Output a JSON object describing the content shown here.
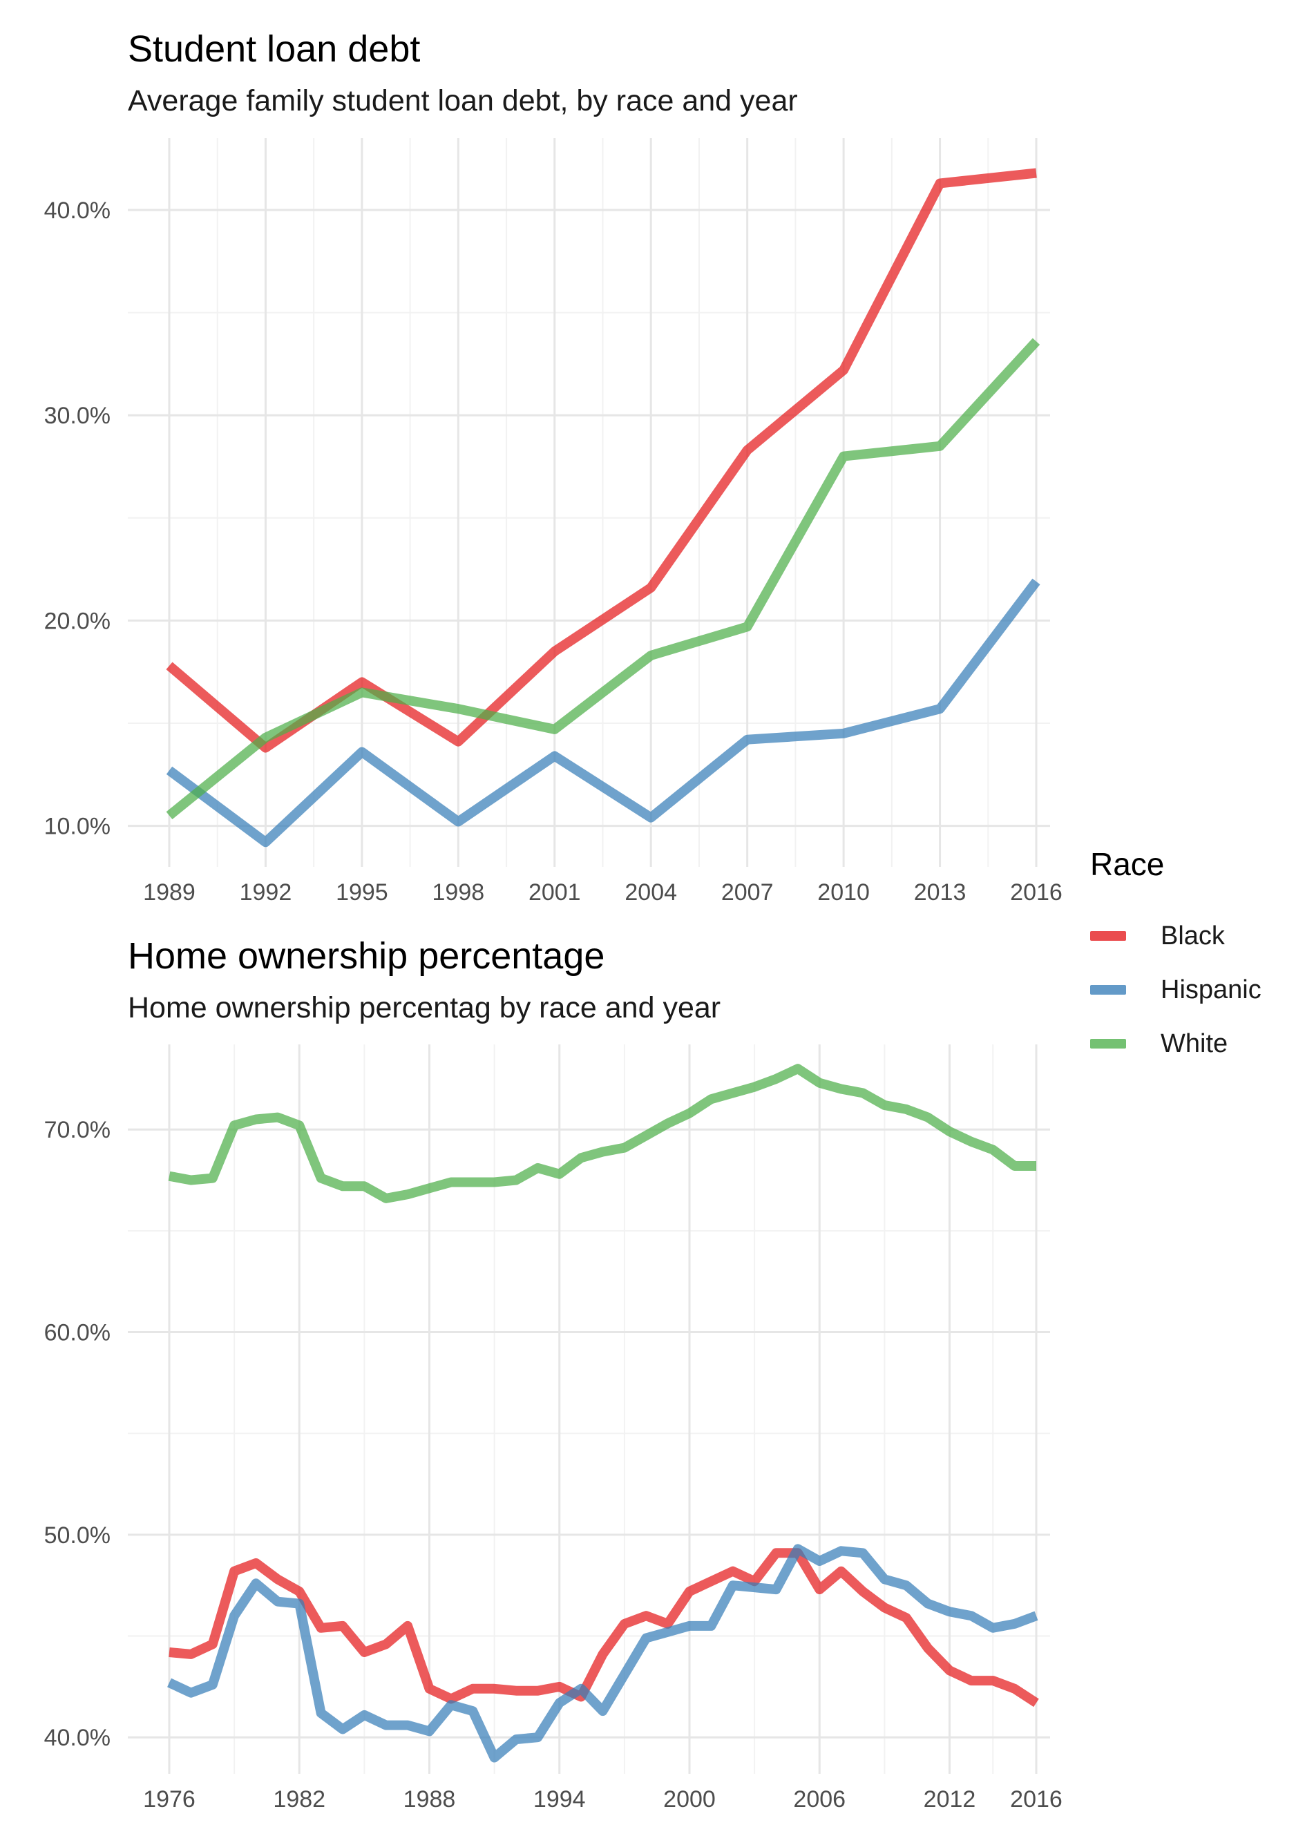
{
  "legend": {
    "title": "Race",
    "items": [
      {
        "label": "Black",
        "color": "#E41A1C"
      },
      {
        "label": "Hispanic",
        "color": "#377EB8"
      },
      {
        "label": "White",
        "color": "#4DAF4A"
      }
    ]
  },
  "chart_data": [
    {
      "type": "line",
      "title": "Student loan debt",
      "subtitle": "Average family student loan debt, by race and year",
      "xlabel": "",
      "ylabel": "",
      "xlim": [
        1989,
        2016
      ],
      "ylim": [
        8.0,
        43.5
      ],
      "x_ticks": [
        1989,
        1992,
        1995,
        1998,
        2001,
        2004,
        2007,
        2010,
        2013,
        2016
      ],
      "y_ticks": [
        10,
        20,
        30,
        40
      ],
      "y_tick_labels": [
        "10.0%",
        "20.0%",
        "30.0%",
        "40.0%"
      ],
      "grid": true,
      "legend_position": "right",
      "x": [
        1989,
        1992,
        1995,
        1998,
        2001,
        2004,
        2007,
        2010,
        2013,
        2016
      ],
      "series": [
        {
          "name": "Black",
          "values": [
            17.8,
            13.8,
            17.0,
            14.1,
            18.5,
            21.6,
            28.3,
            32.2,
            41.3,
            41.8
          ]
        },
        {
          "name": "Hispanic",
          "values": [
            12.7,
            9.2,
            13.6,
            10.2,
            13.4,
            10.4,
            14.2,
            14.5,
            15.7,
            21.9
          ]
        },
        {
          "name": "White",
          "values": [
            10.5,
            14.3,
            16.5,
            15.7,
            14.7,
            18.3,
            19.7,
            28.0,
            28.5,
            33.6
          ]
        }
      ]
    },
    {
      "type": "line",
      "title": "Home ownership percentage",
      "subtitle": "Home ownership percentag by race and year",
      "xlabel": "",
      "ylabel": "",
      "xlim": [
        1976,
        2016
      ],
      "ylim": [
        38.2,
        74.2
      ],
      "x_ticks": [
        1976,
        1982,
        1988,
        1994,
        2000,
        2006,
        2012,
        2016
      ],
      "y_ticks": [
        40,
        50,
        60,
        70
      ],
      "y_tick_labels": [
        "40.0%",
        "50.0%",
        "60.0%",
        "70.0%"
      ],
      "grid": true,
      "legend_position": "right",
      "x": [
        1976,
        1977,
        1978,
        1979,
        1980,
        1981,
        1982,
        1983,
        1984,
        1985,
        1986,
        1987,
        1988,
        1989,
        1990,
        1991,
        1992,
        1993,
        1994,
        1995,
        1996,
        1997,
        1998,
        1999,
        2000,
        2001,
        2002,
        2003,
        2004,
        2005,
        2006,
        2007,
        2008,
        2009,
        2010,
        2011,
        2012,
        2013,
        2014,
        2015,
        2016
      ],
      "series": [
        {
          "name": "Black",
          "values": [
            44.2,
            44.1,
            44.6,
            48.2,
            48.6,
            47.8,
            47.2,
            45.4,
            45.5,
            44.2,
            44.6,
            45.5,
            42.4,
            41.9,
            42.4,
            42.4,
            42.3,
            42.3,
            42.5,
            42.0,
            44.1,
            45.6,
            46.0,
            45.6,
            47.2,
            47.7,
            48.2,
            47.7,
            49.1,
            49.1,
            47.3,
            48.2,
            47.2,
            46.4,
            45.9,
            44.4,
            43.3,
            42.8,
            42.8,
            42.4,
            41.7
          ]
        },
        {
          "name": "Hispanic",
          "values": [
            42.7,
            42.2,
            42.6,
            46.0,
            47.6,
            46.7,
            46.6,
            41.2,
            40.4,
            41.1,
            40.6,
            40.6,
            40.3,
            41.6,
            41.3,
            39.0,
            39.9,
            40.0,
            41.7,
            42.4,
            41.3,
            43.1,
            44.9,
            45.2,
            45.5,
            45.5,
            47.5,
            47.4,
            47.3,
            49.3,
            48.7,
            49.2,
            49.1,
            47.8,
            47.5,
            46.6,
            46.2,
            46.0,
            45.4,
            45.6,
            46.0
          ]
        },
        {
          "name": "White",
          "values": [
            67.7,
            67.5,
            67.6,
            70.2,
            70.5,
            70.6,
            70.2,
            67.6,
            67.2,
            67.2,
            66.6,
            66.8,
            67.1,
            67.4,
            67.4,
            67.4,
            67.5,
            68.1,
            67.8,
            68.6,
            68.9,
            69.1,
            69.7,
            70.3,
            70.8,
            71.5,
            71.8,
            72.1,
            72.5,
            73.0,
            72.3,
            72.0,
            71.8,
            71.2,
            71.0,
            70.6,
            69.9,
            69.4,
            69.0,
            68.2,
            68.2
          ]
        }
      ]
    }
  ]
}
